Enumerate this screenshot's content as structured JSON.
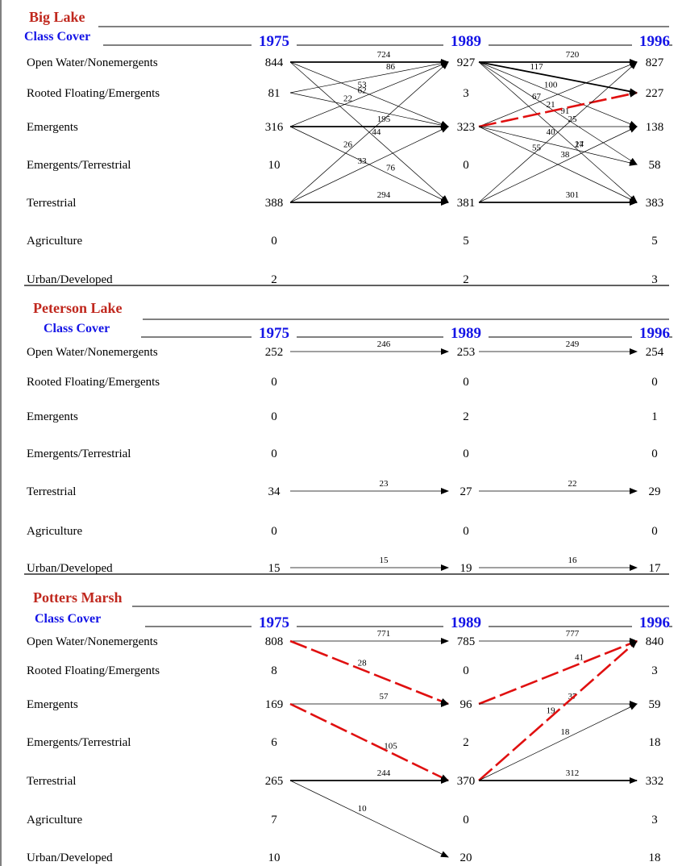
{
  "years": [
    "1975",
    "1989",
    "1996"
  ],
  "class_cover_label": "Class Cover",
  "classes": [
    "Open Water/Nonemergents",
    "Rooted Floating/Emergents",
    "Emergents",
    "Emergents/Terrestrial",
    "Terrestrial",
    "Agriculture",
    "Urban/Developed"
  ],
  "colors": {
    "title": "#c0281e",
    "year": "#1414e6",
    "highlight": "#e01010"
  },
  "lakes": [
    {
      "name": "Big Lake",
      "values": [
        [
          "844",
          "927",
          "827"
        ],
        [
          "81",
          "3",
          "227"
        ],
        [
          "316",
          "323",
          "138"
        ],
        [
          "10",
          "0",
          "58"
        ],
        [
          "388",
          "381",
          "383"
        ],
        [
          "0",
          "5",
          "5"
        ],
        [
          "2",
          "2",
          "3"
        ]
      ],
      "flows": [
        {
          "period": 0,
          "from": 0,
          "to": 0,
          "label": "724",
          "weight": "heavy"
        },
        {
          "period": 0,
          "from": 0,
          "to": 2,
          "label": "53"
        },
        {
          "period": 0,
          "from": 0,
          "to": 4,
          "label": "44"
        },
        {
          "period": 0,
          "from": 1,
          "to": 0,
          "label": "86"
        },
        {
          "period": 0,
          "from": 1,
          "to": 2,
          "label": "22"
        },
        {
          "period": 0,
          "from": 2,
          "to": 0,
          "label": "62"
        },
        {
          "period": 0,
          "from": 2,
          "to": 2,
          "label": "195",
          "weight": "heavy"
        },
        {
          "period": 0,
          "from": 2,
          "to": 4,
          "label": "76"
        },
        {
          "period": 0,
          "from": 4,
          "to": 0,
          "label": "26"
        },
        {
          "period": 0,
          "from": 4,
          "to": 2,
          "label": "33"
        },
        {
          "period": 0,
          "from": 4,
          "to": 4,
          "label": "294",
          "weight": "heavy"
        },
        {
          "period": 1,
          "from": 0,
          "to": 0,
          "label": "720",
          "weight": "heavy"
        },
        {
          "period": 1,
          "from": 0,
          "to": 1,
          "label": "117",
          "weight": "heavy"
        },
        {
          "period": 1,
          "from": 0,
          "to": 2,
          "label": "100"
        },
        {
          "period": 1,
          "from": 0,
          "to": 3,
          "label": "91"
        },
        {
          "period": 1,
          "from": 0,
          "to": 4,
          "label": "27"
        },
        {
          "period": 1,
          "from": 2,
          "to": 0,
          "label": "67"
        },
        {
          "period": 1,
          "from": 2,
          "to": 1,
          "label": "21",
          "style": "dashed"
        },
        {
          "period": 1,
          "from": 2,
          "to": 2,
          "label": "25"
        },
        {
          "period": 1,
          "from": 2,
          "to": 3,
          "label": "14"
        },
        {
          "period": 1,
          "from": 2,
          "to": 4,
          "label": "55"
        },
        {
          "period": 1,
          "from": 4,
          "to": 0,
          "label": "40"
        },
        {
          "period": 1,
          "from": 4,
          "to": 2,
          "label": "38"
        },
        {
          "period": 1,
          "from": 4,
          "to": 4,
          "label": "301",
          "weight": "heavy"
        }
      ]
    },
    {
      "name": "Peterson Lake",
      "values": [
        [
          "252",
          "253",
          "254"
        ],
        [
          "0",
          "0",
          "0"
        ],
        [
          "0",
          "2",
          "1"
        ],
        [
          "0",
          "0",
          "0"
        ],
        [
          "34",
          "27",
          "29"
        ],
        [
          "0",
          "0",
          "0"
        ],
        [
          "15",
          "19",
          "17"
        ]
      ],
      "flows": [
        {
          "period": 0,
          "from": 0,
          "to": 0,
          "label": "246"
        },
        {
          "period": 1,
          "from": 0,
          "to": 0,
          "label": "249"
        },
        {
          "period": 0,
          "from": 4,
          "to": 4,
          "label": "23"
        },
        {
          "period": 1,
          "from": 4,
          "to": 4,
          "label": "22"
        },
        {
          "period": 0,
          "from": 6,
          "to": 6,
          "label": "15"
        },
        {
          "period": 1,
          "from": 6,
          "to": 6,
          "label": "16"
        }
      ]
    },
    {
      "name": "Potters Marsh",
      "values": [
        [
          "808",
          "785",
          "840"
        ],
        [
          "8",
          "0",
          "3"
        ],
        [
          "169",
          "96",
          "59"
        ],
        [
          "6",
          "2",
          "18"
        ],
        [
          "265",
          "370",
          "332"
        ],
        [
          "7",
          "0",
          "3"
        ],
        [
          "10",
          "20",
          "18"
        ]
      ],
      "flows": [
        {
          "period": 0,
          "from": 0,
          "to": 0,
          "label": "771"
        },
        {
          "period": 0,
          "from": 0,
          "to": 2,
          "label": "28",
          "style": "dashed"
        },
        {
          "period": 0,
          "from": 2,
          "to": 2,
          "label": "57"
        },
        {
          "period": 0,
          "from": 2,
          "to": 4,
          "label": "105",
          "style": "dashed"
        },
        {
          "period": 0,
          "from": 4,
          "to": 4,
          "label": "244",
          "weight": "heavy"
        },
        {
          "period": 0,
          "from": 4,
          "to": 6,
          "label": "10"
        },
        {
          "period": 1,
          "from": 0,
          "to": 0,
          "label": "777"
        },
        {
          "period": 1,
          "from": 2,
          "to": 0,
          "label": "41",
          "style": "dashed"
        },
        {
          "period": 1,
          "from": 2,
          "to": 2,
          "label": "37"
        },
        {
          "period": 1,
          "from": 4,
          "to": 0,
          "label": "19",
          "style": "dashed"
        },
        {
          "period": 1,
          "from": 4,
          "to": 2,
          "label": "18"
        },
        {
          "period": 1,
          "from": 4,
          "to": 4,
          "label": "312",
          "weight": "heavy"
        }
      ]
    }
  ]
}
